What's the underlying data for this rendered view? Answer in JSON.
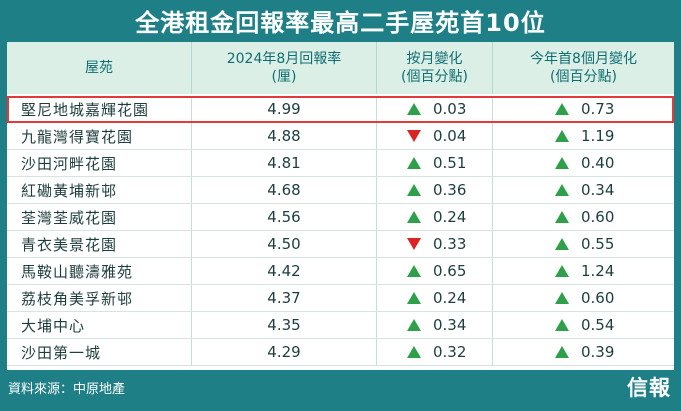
{
  "title": "全港租金回報率最高二手屋苑首10位",
  "headers": {
    "estate": "屋苑",
    "yield_line1": "2024年8月回報率",
    "yield_line2": "(厘)",
    "mom_line1": "按月變化",
    "mom_line2": "(個百分點)",
    "ytd_line1": "今年首8個月變化",
    "ytd_line2": "(個百分點)"
  },
  "colors": {
    "frame": "#1f7f87",
    "header_bg": "#dcefe6",
    "up": "#2fa04a",
    "down": "#d92424",
    "highlight": "#e23a3a"
  },
  "rows": [
    {
      "name": "堅尼地城嘉輝花園",
      "yield": "4.99",
      "mom_dir": "up",
      "mom": "0.03",
      "ytd_dir": "up",
      "ytd": "0.73",
      "highlight": true
    },
    {
      "name": "九龍灣得寶花園",
      "yield": "4.88",
      "mom_dir": "down",
      "mom": "0.04",
      "ytd_dir": "up",
      "ytd": "1.19"
    },
    {
      "name": "沙田河畔花園",
      "yield": "4.81",
      "mom_dir": "up",
      "mom": "0.51",
      "ytd_dir": "up",
      "ytd": "0.40"
    },
    {
      "name": "紅磡黃埔新邨",
      "yield": "4.68",
      "mom_dir": "up",
      "mom": "0.36",
      "ytd_dir": "up",
      "ytd": "0.34"
    },
    {
      "name": "荃灣荃威花園",
      "yield": "4.56",
      "mom_dir": "up",
      "mom": "0.24",
      "ytd_dir": "up",
      "ytd": "0.60"
    },
    {
      "name": "青衣美景花園",
      "yield": "4.50",
      "mom_dir": "down",
      "mom": "0.33",
      "ytd_dir": "up",
      "ytd": "0.55"
    },
    {
      "name": "馬鞍山聽濤雅苑",
      "yield": "4.42",
      "mom_dir": "up",
      "mom": "0.65",
      "ytd_dir": "up",
      "ytd": "1.24"
    },
    {
      "name": "荔枝角美孚新邨",
      "yield": "4.37",
      "mom_dir": "up",
      "mom": "0.24",
      "ytd_dir": "up",
      "ytd": "0.60"
    },
    {
      "name": "大埔中心",
      "yield": "4.35",
      "mom_dir": "up",
      "mom": "0.34",
      "ytd_dir": "up",
      "ytd": "0.54"
    },
    {
      "name": "沙田第一城",
      "yield": "4.29",
      "mom_dir": "up",
      "mom": "0.32",
      "ytd_dir": "up",
      "ytd": "0.39"
    }
  ],
  "footer": {
    "source": "資料來源：中原地產",
    "logo": "信報"
  }
}
